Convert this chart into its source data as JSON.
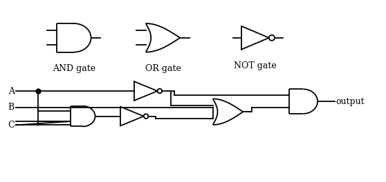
{
  "bg_color": "#ffffff",
  "line_color": "#000000",
  "line_width": 1.3,
  "labels": {
    "AND_gate": "AND gate",
    "OR_gate": "OR gate",
    "NOT_gate": "NOT gate",
    "output": "output",
    "A": "A",
    "B": "B",
    "C": "C"
  },
  "font_size": 9,
  "fig_w": 5.58,
  "fig_h": 2.64,
  "dpi": 100
}
